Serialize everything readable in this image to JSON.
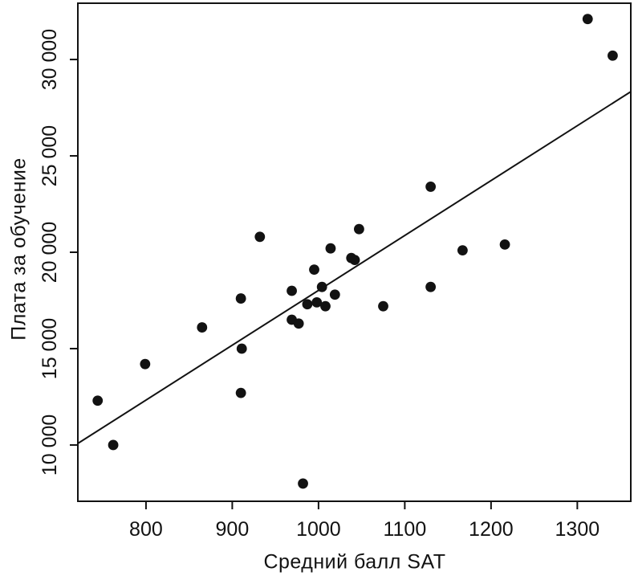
{
  "chart_data": {
    "type": "scatter",
    "title": "",
    "xlabel": "Средний балл SAT",
    "ylabel": "Плата за обучение",
    "xlim": [
      721,
      1362
    ],
    "ylim": [
      7080,
      32920
    ],
    "x_ticks": [
      800,
      900,
      1000,
      1100,
      1200,
      1300
    ],
    "x_tick_labels": [
      "800",
      "900",
      "1000",
      "1100",
      "1200",
      "1300"
    ],
    "y_ticks": [
      10000,
      15000,
      20000,
      25000,
      30000
    ],
    "y_tick_labels": [
      "10 000",
      "15 000",
      "20 000",
      "25 000",
      "30 000"
    ],
    "grid": false,
    "legend": null,
    "axis_color": "#121212",
    "text_color": "#121212",
    "marker_color": "#121212",
    "line_color": "#121212",
    "points": [
      [
        744,
        12300
      ],
      [
        762,
        10000
      ],
      [
        799,
        14200
      ],
      [
        865,
        16100
      ],
      [
        910,
        17600
      ],
      [
        911,
        15000
      ],
      [
        910,
        12700
      ],
      [
        932,
        20800
      ],
      [
        969,
        18000
      ],
      [
        969,
        16500
      ],
      [
        977,
        16300
      ],
      [
        982,
        8000
      ],
      [
        987,
        17300
      ],
      [
        995,
        19100
      ],
      [
        998,
        17400
      ],
      [
        1004,
        18200
      ],
      [
        1008,
        17200
      ],
      [
        1014,
        20200
      ],
      [
        1019,
        17800
      ],
      [
        1038,
        19700
      ],
      [
        1042,
        19600
      ],
      [
        1047,
        21200
      ],
      [
        1075,
        17200
      ],
      [
        1130,
        23400
      ],
      [
        1130,
        18200
      ],
      [
        1167,
        20100
      ],
      [
        1216,
        20400
      ],
      [
        1312,
        32100
      ],
      [
        1341,
        30200
      ]
    ],
    "trendline": {
      "x1": 721,
      "y1": 10080,
      "x2": 1362,
      "y2": 28330
    }
  }
}
